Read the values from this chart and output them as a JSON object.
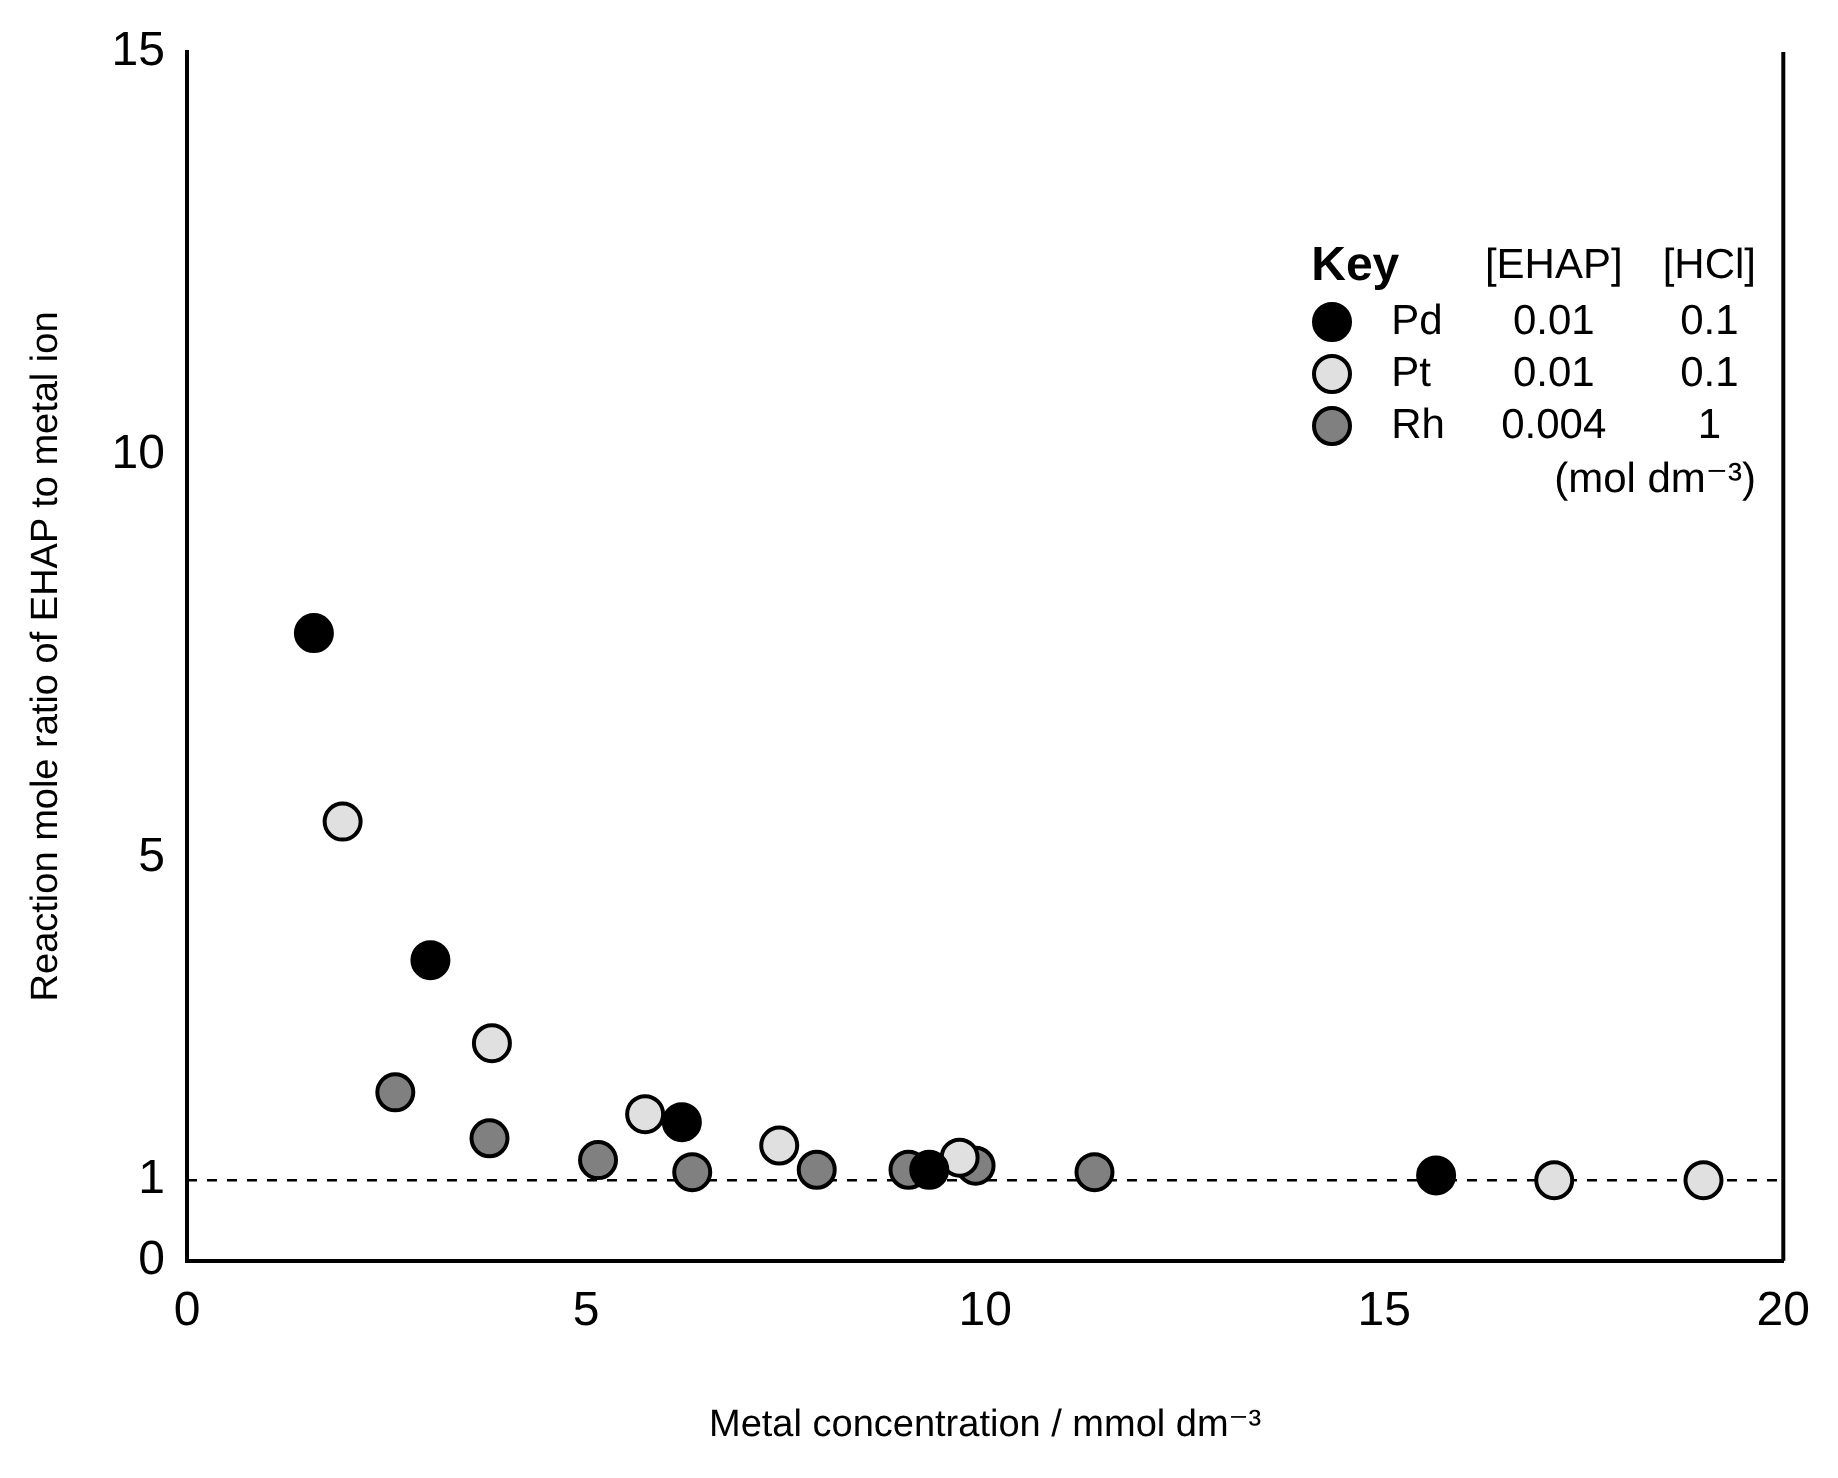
{
  "chart_data": {
    "type": "scatter",
    "xlabel": "Metal concentration / mmol dm⁻³",
    "ylabel": "Reaction mole ratio of EHAP to metal ion",
    "legend_title": "Key",
    "legend": "top right",
    "marker": "circle",
    "grid": false,
    "xlim": [
      0,
      20
    ],
    "xticks": [
      0,
      5,
      10,
      15,
      20
    ],
    "ylim": [
      0,
      15
    ],
    "yticks": [
      0,
      1,
      5,
      10,
      15
    ],
    "series": [
      {
        "name": "Pd",
        "color": "#000000",
        "x": [
          1.59,
          3.05,
          6.2,
          9.3,
          15.65
        ],
        "values": [
          7.79,
          3.73,
          1.72,
          1.13,
          1.06
        ]
      },
      {
        "name": "Pt",
        "color": "#e0e0e0",
        "x": [
          1.95,
          3.82,
          5.74,
          7.42,
          9.68,
          17.13,
          19.0
        ],
        "values": [
          5.45,
          2.7,
          1.82,
          1.43,
          1.28,
          1.0,
          1.0
        ]
      },
      {
        "name": "Rh",
        "color": "#808080",
        "x": [
          2.61,
          3.79,
          5.15,
          6.33,
          7.89,
          9.04,
          9.88,
          11.37
        ],
        "values": [
          2.09,
          1.52,
          1.25,
          1.1,
          1.13,
          1.13,
          1.18,
          1.1
        ]
      }
    ],
    "ref_lines": [
      {
        "axis": "y",
        "value": 1,
        "line_style": "dashed"
      }
    ],
    "annotations": [
      "[EHAP]",
      "[HCl]",
      "0.01",
      "0.1",
      "0.01",
      "0.1",
      "0.004",
      "1",
      "(mol dm⁻³)"
    ]
  }
}
